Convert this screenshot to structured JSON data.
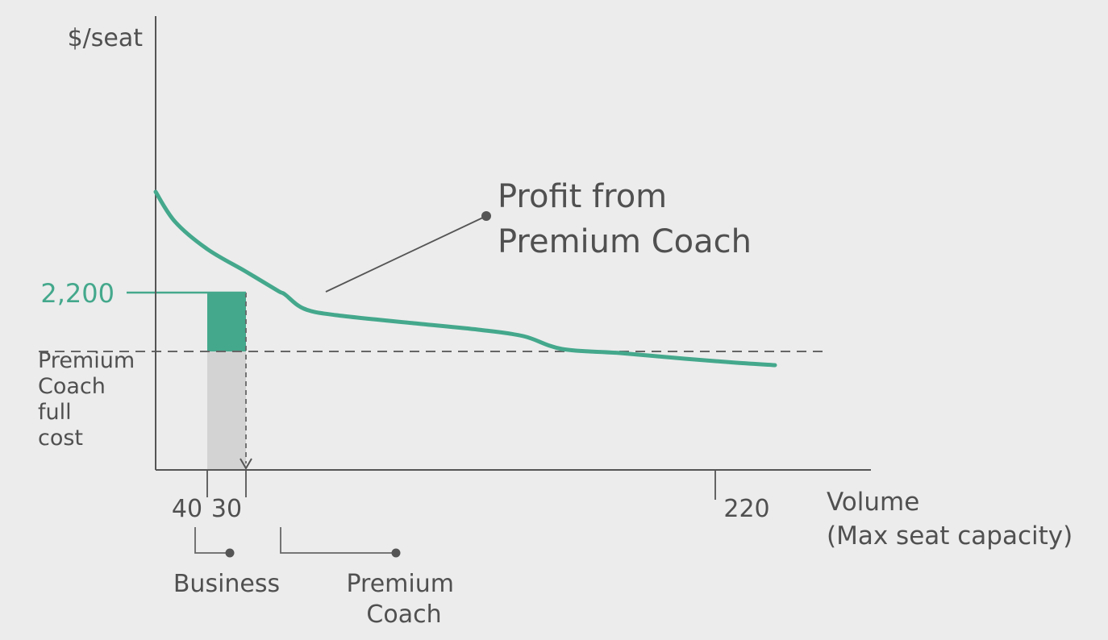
{
  "chart_data": {
    "type": "line",
    "ylabel": "$/seat",
    "xlabel": "Volume",
    "xlabel_sub": "(Max seat capacity)",
    "curve": {
      "color": "#44a88c",
      "points": [
        [
          0,
          3450
        ],
        [
          15,
          3080
        ],
        [
          40,
          2740
        ],
        [
          70,
          2460
        ],
        [
          95,
          2220
        ],
        [
          100,
          2180
        ],
        [
          115,
          2000
        ],
        [
          140,
          1920
        ],
        [
          200,
          1820
        ],
        [
          250,
          1740
        ],
        [
          285,
          1660
        ],
        [
          315,
          1500
        ],
        [
          360,
          1450
        ],
        [
          410,
          1380
        ],
        [
          450,
          1330
        ],
        [
          480,
          1300
        ]
      ]
    },
    "price_line": {
      "label": "2,200",
      "value": 2200,
      "color": "#44a88c"
    },
    "cost_line": {
      "value": 1470,
      "label_lines": [
        "Premium",
        "Coach",
        "full",
        "cost"
      ]
    },
    "segments": [
      {
        "label": "40",
        "value": 40,
        "group_label": [
          "Business"
        ]
      },
      {
        "label": "30",
        "value": 30,
        "group_label": [
          "Premium",
          "Coach"
        ]
      }
    ],
    "end_tick": {
      "label": "220",
      "value": 220
    },
    "annotation": {
      "lines": [
        "Profit from",
        "Premium Coach"
      ]
    },
    "colors": {
      "profit": "#44a88c",
      "cost": "#d3d3d3",
      "axis": "#555555",
      "text": "#505050"
    }
  }
}
